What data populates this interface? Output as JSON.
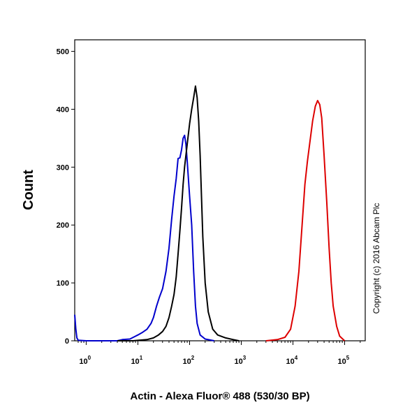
{
  "chart_data": {
    "type": "line",
    "xlabel": "Actin - Alexa Fluor® 488 (530/30 BP)",
    "ylabel": "Count",
    "xscale": "log",
    "xlim": [
      0.6,
      250000
    ],
    "ylim": [
      0,
      520
    ],
    "x_ticks": [
      {
        "base": "10",
        "exp": "0",
        "value": 1
      },
      {
        "base": "10",
        "exp": "1",
        "value": 10
      },
      {
        "base": "10",
        "exp": "2",
        "value": 100
      },
      {
        "base": "10",
        "exp": "3",
        "value": 1000
      },
      {
        "base": "10",
        "exp": "4",
        "value": 10000
      },
      {
        "base": "10",
        "exp": "5",
        "value": 100000
      }
    ],
    "y_ticks": [
      0,
      100,
      200,
      300,
      400,
      500
    ],
    "copyright": "Copyright (c) 2016 Abcam Plc",
    "series": [
      {
        "color": "#0000cc",
        "points": [
          [
            0.6,
            45
          ],
          [
            0.63,
            20
          ],
          [
            0.66,
            5
          ],
          [
            0.7,
            1
          ],
          [
            1,
            0
          ],
          [
            2,
            0
          ],
          [
            4,
            0
          ],
          [
            5,
            2
          ],
          [
            7,
            3
          ],
          [
            9,
            8
          ],
          [
            10,
            10
          ],
          [
            12,
            14
          ],
          [
            15,
            20
          ],
          [
            18,
            30
          ],
          [
            20,
            40
          ],
          [
            23,
            60
          ],
          [
            26,
            75
          ],
          [
            30,
            90
          ],
          [
            35,
            120
          ],
          [
            40,
            160
          ],
          [
            45,
            210
          ],
          [
            50,
            250
          ],
          [
            55,
            280
          ],
          [
            60,
            315
          ],
          [
            65,
            316
          ],
          [
            70,
            330
          ],
          [
            75,
            350
          ],
          [
            80,
            355
          ],
          [
            85,
            340
          ],
          [
            90,
            310
          ],
          [
            95,
            280
          ],
          [
            100,
            250
          ],
          [
            110,
            200
          ],
          [
            120,
            120
          ],
          [
            130,
            60
          ],
          [
            140,
            30
          ],
          [
            160,
            10
          ],
          [
            200,
            3
          ],
          [
            300,
            0
          ]
        ]
      },
      {
        "color": "#000000",
        "points": [
          [
            4,
            0
          ],
          [
            8,
            0
          ],
          [
            15,
            2
          ],
          [
            20,
            5
          ],
          [
            25,
            10
          ],
          [
            30,
            16
          ],
          [
            35,
            25
          ],
          [
            40,
            40
          ],
          [
            45,
            60
          ],
          [
            50,
            80
          ],
          [
            55,
            110
          ],
          [
            60,
            150
          ],
          [
            65,
            190
          ],
          [
            70,
            230
          ],
          [
            75,
            270
          ],
          [
            80,
            300
          ],
          [
            90,
            340
          ],
          [
            100,
            375
          ],
          [
            110,
            400
          ],
          [
            120,
            420
          ],
          [
            130,
            440
          ],
          [
            140,
            420
          ],
          [
            150,
            380
          ],
          [
            160,
            320
          ],
          [
            170,
            250
          ],
          [
            180,
            180
          ],
          [
            200,
            100
          ],
          [
            230,
            50
          ],
          [
            280,
            20
          ],
          [
            350,
            10
          ],
          [
            500,
            5
          ],
          [
            700,
            2
          ],
          [
            900,
            0
          ]
        ]
      },
      {
        "color": "#dd0000",
        "points": [
          [
            3000,
            0
          ],
          [
            5000,
            2
          ],
          [
            7000,
            6
          ],
          [
            9000,
            20
          ],
          [
            11000,
            60
          ],
          [
            13000,
            120
          ],
          [
            15000,
            200
          ],
          [
            17000,
            270
          ],
          [
            19000,
            310
          ],
          [
            21000,
            340
          ],
          [
            24000,
            380
          ],
          [
            27000,
            405
          ],
          [
            30000,
            415
          ],
          [
            33000,
            408
          ],
          [
            36000,
            385
          ],
          [
            40000,
            320
          ],
          [
            45000,
            240
          ],
          [
            50000,
            160
          ],
          [
            55000,
            100
          ],
          [
            60000,
            60
          ],
          [
            70000,
            25
          ],
          [
            80000,
            8
          ],
          [
            100000,
            0
          ]
        ]
      }
    ]
  }
}
